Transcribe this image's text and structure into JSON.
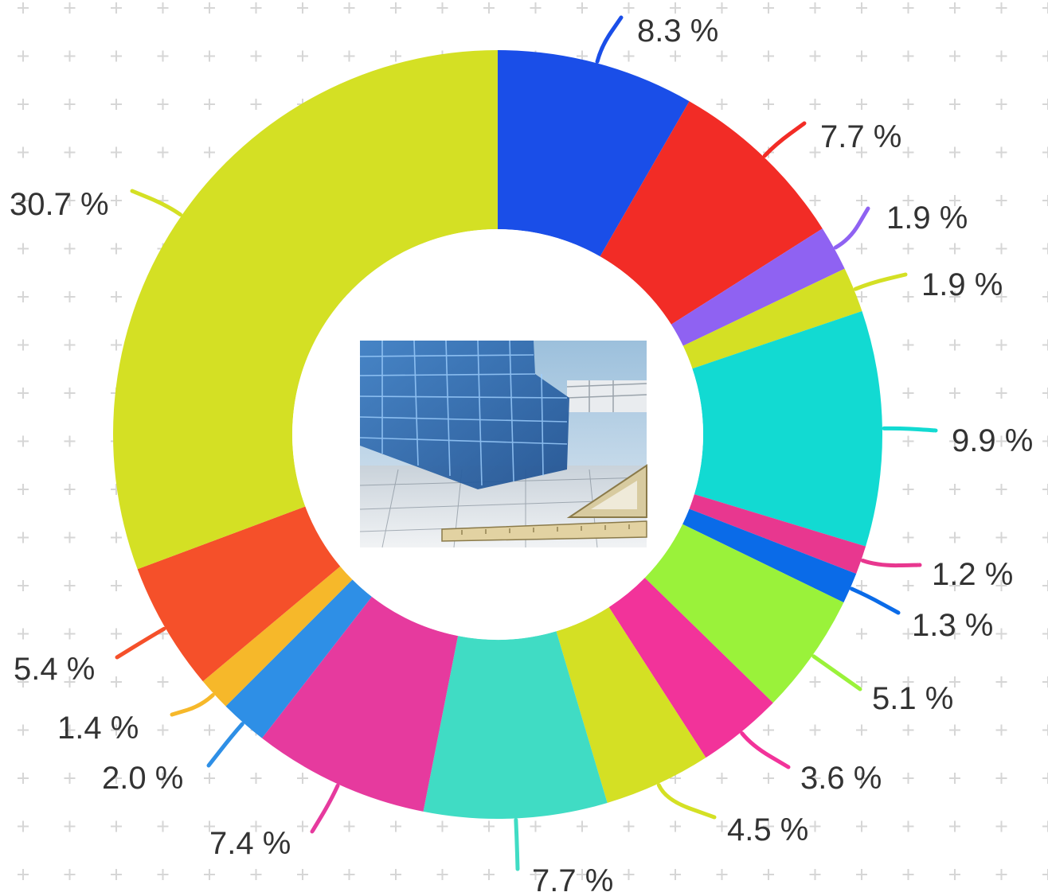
{
  "chart_data": {
    "type": "pie",
    "variant": "donut",
    "start": "top",
    "direction": "clockwise",
    "center_image": "building-blueprint-photo",
    "background_pattern": "plus-grid",
    "slices": [
      {
        "value": 8.3,
        "label": "8.3 %",
        "color": "#1a4ee8"
      },
      {
        "value": 7.7,
        "label": "7.7 %",
        "color": "#f22c26"
      },
      {
        "value": 1.9,
        "label": "1.9 %",
        "color": "#8f62f2"
      },
      {
        "value": 1.9,
        "label": "1.9 %",
        "color": "#d4e024"
      },
      {
        "value": 9.9,
        "label": "9.9 %",
        "color": "#12dad2"
      },
      {
        "value": 1.2,
        "label": "1.2 %",
        "color": "#e8378f"
      },
      {
        "value": 1.3,
        "label": "1.3 %",
        "color": "#0a6be8"
      },
      {
        "value": 5.1,
        "label": "5.1 %",
        "color": "#9af23a"
      },
      {
        "value": 3.6,
        "label": "3.6 %",
        "color": "#f2339a"
      },
      {
        "value": 4.5,
        "label": "4.5 %",
        "color": "#d4e024"
      },
      {
        "value": 7.7,
        "label": "7.7 %",
        "color": "#40dcc4"
      },
      {
        "value": 7.4,
        "label": "7.4 %",
        "color": "#e63a9e"
      },
      {
        "value": 2.0,
        "label": "2.0 %",
        "color": "#2e8fe6"
      },
      {
        "value": 1.4,
        "label": "1.4 %",
        "color": "#f6b82a"
      },
      {
        "value": 5.4,
        "label": "5.4 %",
        "color": "#f5502a"
      },
      {
        "value": 30.7,
        "label": "30.7 %",
        "color": "#d4e024"
      }
    ]
  }
}
